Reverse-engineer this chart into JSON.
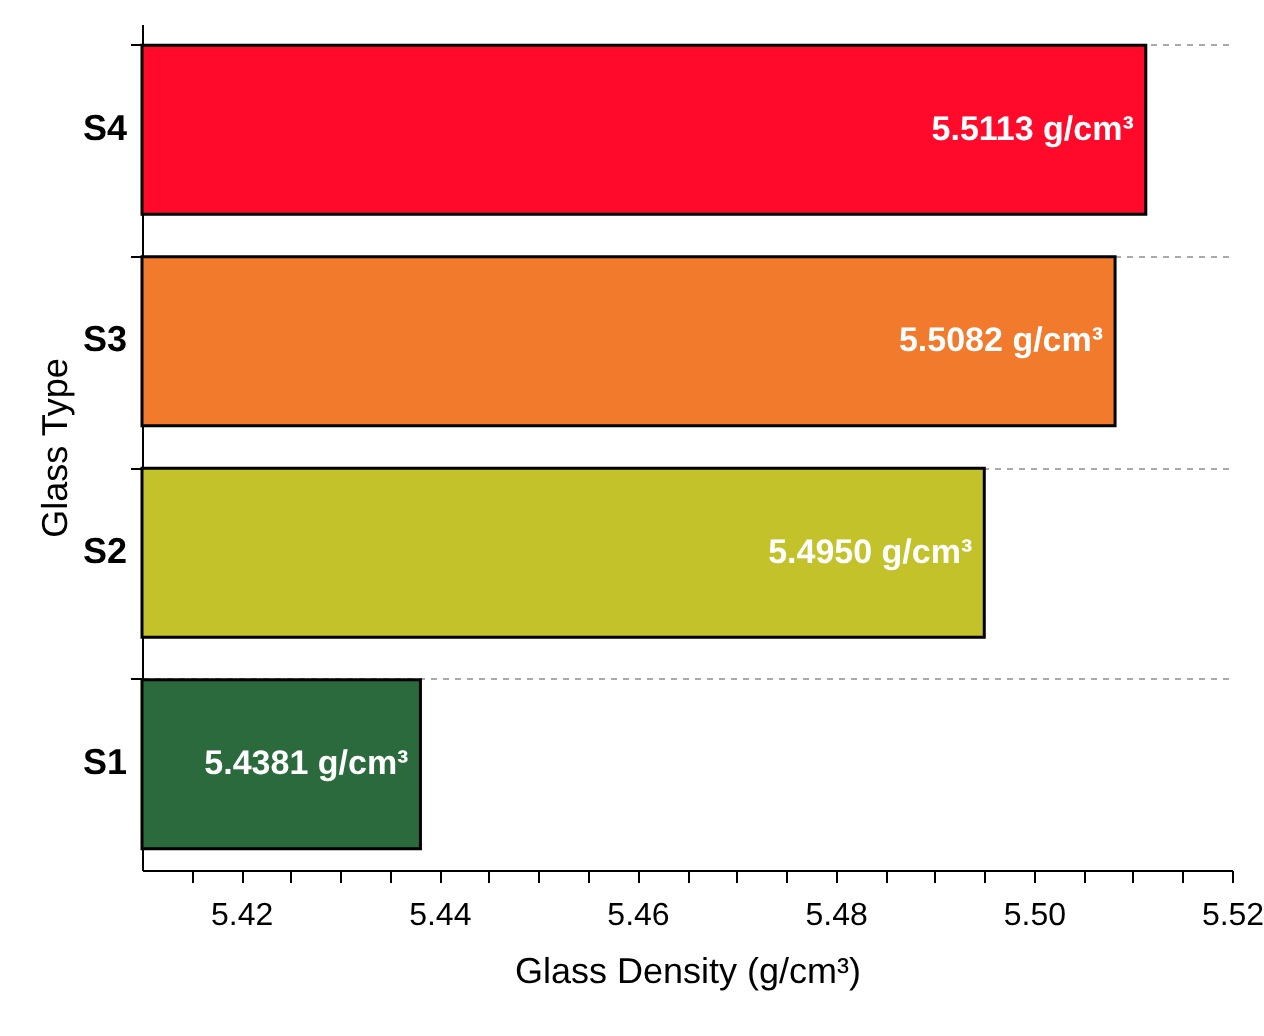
{
  "chart_data": {
    "type": "bar",
    "orientation": "horizontal",
    "xlabel": "Glass Density (g/cm³)",
    "ylabel": "Glass Type",
    "categories": [
      "S4",
      "S3",
      "S2",
      "S1"
    ],
    "values": [
      5.5113,
      5.5082,
      5.495,
      5.4381
    ],
    "colors": [
      "#ff0a2a",
      "#f27a2c",
      "#c4c22a",
      "#2a6a3c"
    ],
    "value_labels": [
      "5.5113 g/cm³",
      "5.5082 g/cm³",
      "5.4950 g/cm³",
      "5.4381 g/cm³"
    ],
    "xlim": [
      5.41,
      5.52
    ],
    "xticks": [
      {
        "value": 5.415,
        "label": null
      },
      5.42,
      {
        "value": 5.425,
        "label": null
      },
      {
        "value": 5.43,
        "label": null
      },
      {
        "value": 5.435,
        "label": null
      },
      5.44,
      {
        "value": 5.445,
        "label": null
      },
      {
        "value": 5.45,
        "label": null
      },
      {
        "value": 5.455,
        "label": null
      },
      5.46,
      {
        "value": 5.465,
        "label": null
      },
      {
        "value": 5.47,
        "label": null
      },
      {
        "value": 5.475,
        "label": null
      },
      5.48,
      {
        "value": 5.485,
        "label": null
      },
      {
        "value": 5.49,
        "label": null
      },
      {
        "value": 5.495,
        "label": null
      },
      {
        "value": 5.5,
        "label": "5.50"
      },
      {
        "value": 5.505,
        "label": null
      },
      {
        "value": 5.51,
        "label": null
      },
      {
        "value": 5.515,
        "label": null
      },
      5.52
    ],
    "grid": "y"
  }
}
